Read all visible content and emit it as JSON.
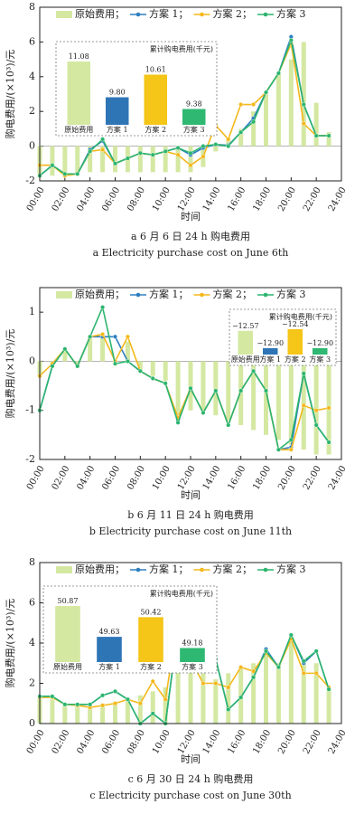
{
  "chart_data": [
    {
      "type": "combo",
      "ylabel": "购电费用/(×10³)/元",
      "xlabel": "时间",
      "caption_cn": "a  6 月 6 日 24 h 购电费用",
      "caption_en": "a  Electricity purchase cost on June 6th",
      "x": [
        0,
        1,
        2,
        3,
        4,
        5,
        6,
        7,
        8,
        9,
        10,
        11,
        12,
        13,
        14,
        15,
        16,
        17,
        18,
        19,
        20,
        21,
        22,
        23
      ],
      "xlim": [
        0,
        24
      ],
      "xticks": [
        {
          "value": 0,
          "label": "00:00"
        },
        {
          "value": 2,
          "label": "02:00"
        },
        {
          "value": 4,
          "label": "04:00"
        },
        {
          "value": 6,
          "label": "06:00"
        },
        {
          "value": 8,
          "label": "08:00"
        },
        {
          "value": 10,
          "label": "10:00"
        },
        {
          "value": 12,
          "label": "12:00"
        },
        {
          "value": 14,
          "label": "14:00"
        },
        {
          "value": 16,
          "label": "16:00"
        },
        {
          "value": 18,
          "label": "18:00"
        },
        {
          "value": 20,
          "label": "20:00"
        },
        {
          "value": 22,
          "label": "22:00"
        },
        {
          "value": 24,
          "label": "24:00"
        }
      ],
      "ylim": [
        -2,
        8
      ],
      "yticks": [
        -2,
        0,
        2,
        4,
        6,
        8
      ],
      "series": [
        {
          "name": "原始费用；",
          "type": "bar",
          "color": "#d4e8a2",
          "values": [
            -1.8,
            -1.7,
            -1.7,
            -1.6,
            -1.5,
            -1.5,
            -1.5,
            -1.5,
            -1.5,
            -1.5,
            -1.5,
            -1.5,
            -1.5,
            -1.2,
            -0.3,
            0.5,
            1.0,
            2.0,
            3.0,
            4.2,
            5.0,
            6.0,
            2.5,
            0.8
          ]
        },
        {
          "name": "方案 1；",
          "type": "line",
          "color": "#2e7fc0",
          "values": [
            -1.7,
            -1.1,
            -1.6,
            -1.6,
            -0.2,
            0.3,
            -1.0,
            -0.7,
            -0.4,
            -0.5,
            -0.3,
            -0.1,
            -0.5,
            -0.1,
            0.1,
            0.05,
            0.8,
            1.6,
            3.1,
            4.2,
            6.3,
            2.4,
            0.6,
            0.6
          ]
        },
        {
          "name": "方案 2；",
          "type": "line",
          "color": "#f4b81c",
          "values": [
            -1.1,
            -1.1,
            -1.7,
            -1.6,
            -0.3,
            -0.2,
            -1.0,
            -0.7,
            -0.4,
            -0.5,
            -0.3,
            -0.5,
            -1.1,
            -0.6,
            1.2,
            0.4,
            2.4,
            2.4,
            3.1,
            4.2,
            5.9,
            1.3,
            0.6,
            0.6
          ]
        },
        {
          "name": "方案 3",
          "type": "line",
          "color": "#2cb56f",
          "values": [
            -1.7,
            -1.1,
            -1.6,
            -1.6,
            -0.3,
            0.4,
            -1.0,
            -0.7,
            -0.4,
            -0.5,
            -0.3,
            -0.1,
            -0.4,
            0.0,
            0.1,
            0.0,
            0.8,
            1.4,
            3.1,
            4.2,
            6.1,
            2.4,
            0.6,
            0.6
          ]
        }
      ],
      "inset": {
        "title": "累计购电费用(千元)",
        "categories": [
          "原始费用",
          "方案 1",
          "方案 2",
          "方案 3"
        ],
        "values": [
          11.08,
          9.8,
          10.61,
          9.38
        ],
        "value_labels": [
          "11.08",
          "9.80",
          "10.61",
          "9.38"
        ],
        "colors": [
          "#d4e8a2",
          "#2e75b6",
          "#f5c518",
          "#2eb872"
        ]
      }
    },
    {
      "type": "combo",
      "ylabel": "购电费用/(×10³)/元",
      "xlabel": "时间",
      "caption_cn": "b  6 月 11 日 24 h 购电费用",
      "caption_en": "b  Electricity purchase cost on June 11th",
      "x": [
        0,
        1,
        2,
        3,
        4,
        5,
        6,
        7,
        8,
        9,
        10,
        11,
        12,
        13,
        14,
        15,
        16,
        17,
        18,
        19,
        20,
        21,
        22,
        23
      ],
      "xlim": [
        0,
        24
      ],
      "xticks": [
        {
          "value": 0,
          "label": "00:00"
        },
        {
          "value": 2,
          "label": "02:00"
        },
        {
          "value": 4,
          "label": "04:00"
        },
        {
          "value": 6,
          "label": "06:00"
        },
        {
          "value": 8,
          "label": "08:00"
        },
        {
          "value": 10,
          "label": "10:00"
        },
        {
          "value": 12,
          "label": "12:00"
        },
        {
          "value": 14,
          "label": "14:00"
        },
        {
          "value": 16,
          "label": "16:00"
        },
        {
          "value": 18,
          "label": "18:00"
        },
        {
          "value": 20,
          "label": "20:00"
        },
        {
          "value": 22,
          "label": "22:00"
        },
        {
          "value": 24,
          "label": "24:00"
        }
      ],
      "ylim": [
        -2,
        1.5
      ],
      "yticks": [
        -2,
        -1,
        0,
        1
      ],
      "series": [
        {
          "name": "原始费用；",
          "type": "bar",
          "color": "#d4e8a2",
          "values": [
            -0.3,
            -0.1,
            0.2,
            -0.1,
            0.5,
            0.5,
            0.0,
            0.4,
            -0.2,
            -0.3,
            -0.4,
            -1.2,
            -1.0,
            -1.0,
            -1.1,
            -1.2,
            -1.3,
            -1.4,
            -1.5,
            -1.6,
            -1.7,
            -1.8,
            -1.9,
            -1.9
          ]
        },
        {
          "name": "方案 1；",
          "type": "line",
          "color": "#2e7fc0",
          "values": [
            -1.0,
            -0.1,
            0.25,
            -0.1,
            0.5,
            0.5,
            0.5,
            0.0,
            -0.2,
            -0.35,
            -0.45,
            -1.2,
            -0.55,
            -1.05,
            -0.6,
            -1.3,
            -0.6,
            -0.2,
            -0.6,
            -1.8,
            -1.75,
            -0.25,
            -1.3,
            -1.65
          ]
        },
        {
          "name": "方案 2；",
          "type": "line",
          "color": "#f4b81c",
          "values": [
            -0.3,
            -0.05,
            0.25,
            -0.1,
            0.5,
            0.55,
            0.0,
            0.5,
            -0.2,
            -0.35,
            -0.45,
            -1.15,
            -0.55,
            -1.05,
            -0.6,
            -1.3,
            -0.6,
            -0.2,
            -0.6,
            -1.8,
            -1.8,
            -0.9,
            -1.0,
            -0.95
          ]
        },
        {
          "name": "方案 3",
          "type": "line",
          "color": "#2cb56f",
          "values": [
            -1.0,
            -0.1,
            0.25,
            -0.1,
            0.5,
            1.1,
            -0.05,
            0.0,
            -0.2,
            -0.35,
            -0.45,
            -1.25,
            -0.55,
            -1.05,
            -0.6,
            -1.3,
            -0.6,
            -0.2,
            -0.6,
            -1.8,
            -1.6,
            -0.25,
            -1.3,
            -1.65
          ]
        }
      ],
      "inset": {
        "title": "累计购电费用(千元)",
        "categories": [
          "原始费用",
          "方案 1",
          "方案 2",
          "方案 3"
        ],
        "values": [
          -12.57,
          -12.9,
          -12.54,
          -12.9
        ],
        "value_labels": [
          "−12.57",
          "−12.90",
          "−12.54",
          "−12.90"
        ],
        "colors": [
          "#d4e8a2",
          "#2e75b6",
          "#f5c518",
          "#2eb872"
        ]
      }
    },
    {
      "type": "combo",
      "ylabel": "购电费用/(×10³)/元",
      "xlabel": "时间",
      "caption_cn": "c  6 月 30 日 24 h 购电费用",
      "caption_en": "c  Electricity purchase cost on June 30th",
      "x": [
        0,
        1,
        2,
        3,
        4,
        5,
        6,
        7,
        8,
        9,
        10,
        11,
        12,
        13,
        14,
        15,
        16,
        17,
        18,
        19,
        20,
        21,
        22,
        23
      ],
      "xlim": [
        0,
        24
      ],
      "xticks": [
        {
          "value": 0,
          "label": "00:00"
        },
        {
          "value": 2,
          "label": "02:00"
        },
        {
          "value": 4,
          "label": "04:00"
        },
        {
          "value": 6,
          "label": "06:00"
        },
        {
          "value": 8,
          "label": "08:00"
        },
        {
          "value": 10,
          "label": "10:00"
        },
        {
          "value": 12,
          "label": "12:00"
        },
        {
          "value": 14,
          "label": "14:00"
        },
        {
          "value": 16,
          "label": "16:00"
        },
        {
          "value": 18,
          "label": "18:00"
        },
        {
          "value": 20,
          "label": "20:00"
        },
        {
          "value": 22,
          "label": "22:00"
        },
        {
          "value": 24,
          "label": "24:00"
        }
      ],
      "ylim": [
        0,
        8
      ],
      "yticks": [
        0,
        2,
        4,
        6,
        8
      ],
      "series": [
        {
          "name": "原始费用；",
          "type": "bar",
          "color": "#d4e8a2",
          "values": [
            1.3,
            1.2,
            1.0,
            0.9,
            0.9,
            1.0,
            1.1,
            1.2,
            1.4,
            1.6,
            1.8,
            4.5,
            3.5,
            2.5,
            2.2,
            2.5,
            2.8,
            3.0,
            3.5,
            3.0,
            4.3,
            3.2,
            3.0,
            1.8
          ]
        },
        {
          "name": "方案 1；",
          "type": "line",
          "color": "#2e7fc0",
          "values": [
            1.35,
            1.35,
            0.95,
            0.95,
            0.95,
            1.4,
            1.6,
            1.2,
            0.0,
            0.5,
            0.0,
            4.8,
            5.0,
            3.2,
            3.2,
            0.7,
            1.3,
            2.3,
            3.7,
            2.8,
            4.4,
            3.0,
            3.6,
            1.7
          ]
        },
        {
          "name": "方案 2；",
          "type": "line",
          "color": "#f4b81c",
          "values": [
            1.3,
            1.3,
            0.95,
            0.9,
            0.8,
            0.9,
            1.0,
            1.2,
            1.0,
            2.1,
            1.2,
            5.2,
            3.2,
            2.0,
            2.0,
            1.8,
            2.8,
            2.6,
            3.5,
            2.8,
            4.2,
            2.5,
            2.5,
            1.8
          ]
        },
        {
          "name": "方案 3",
          "type": "line",
          "color": "#2cb56f",
          "values": [
            1.35,
            1.35,
            0.95,
            0.95,
            0.95,
            1.4,
            1.6,
            1.2,
            0.0,
            0.5,
            0.0,
            4.7,
            4.9,
            3.2,
            3.2,
            0.7,
            1.3,
            2.3,
            3.6,
            2.8,
            4.4,
            3.1,
            3.6,
            1.7
          ]
        }
      ],
      "inset": {
        "title": "累计购电费用(千元)",
        "categories": [
          "原始费用",
          "方案 1",
          "方案 2",
          "方案 3"
        ],
        "values": [
          50.87,
          49.63,
          50.42,
          49.18
        ],
        "value_labels": [
          "50.87",
          "49.63",
          "50.42",
          "49.18"
        ],
        "colors": [
          "#d4e8a2",
          "#2e75b6",
          "#f5c518",
          "#2eb872"
        ]
      }
    }
  ]
}
